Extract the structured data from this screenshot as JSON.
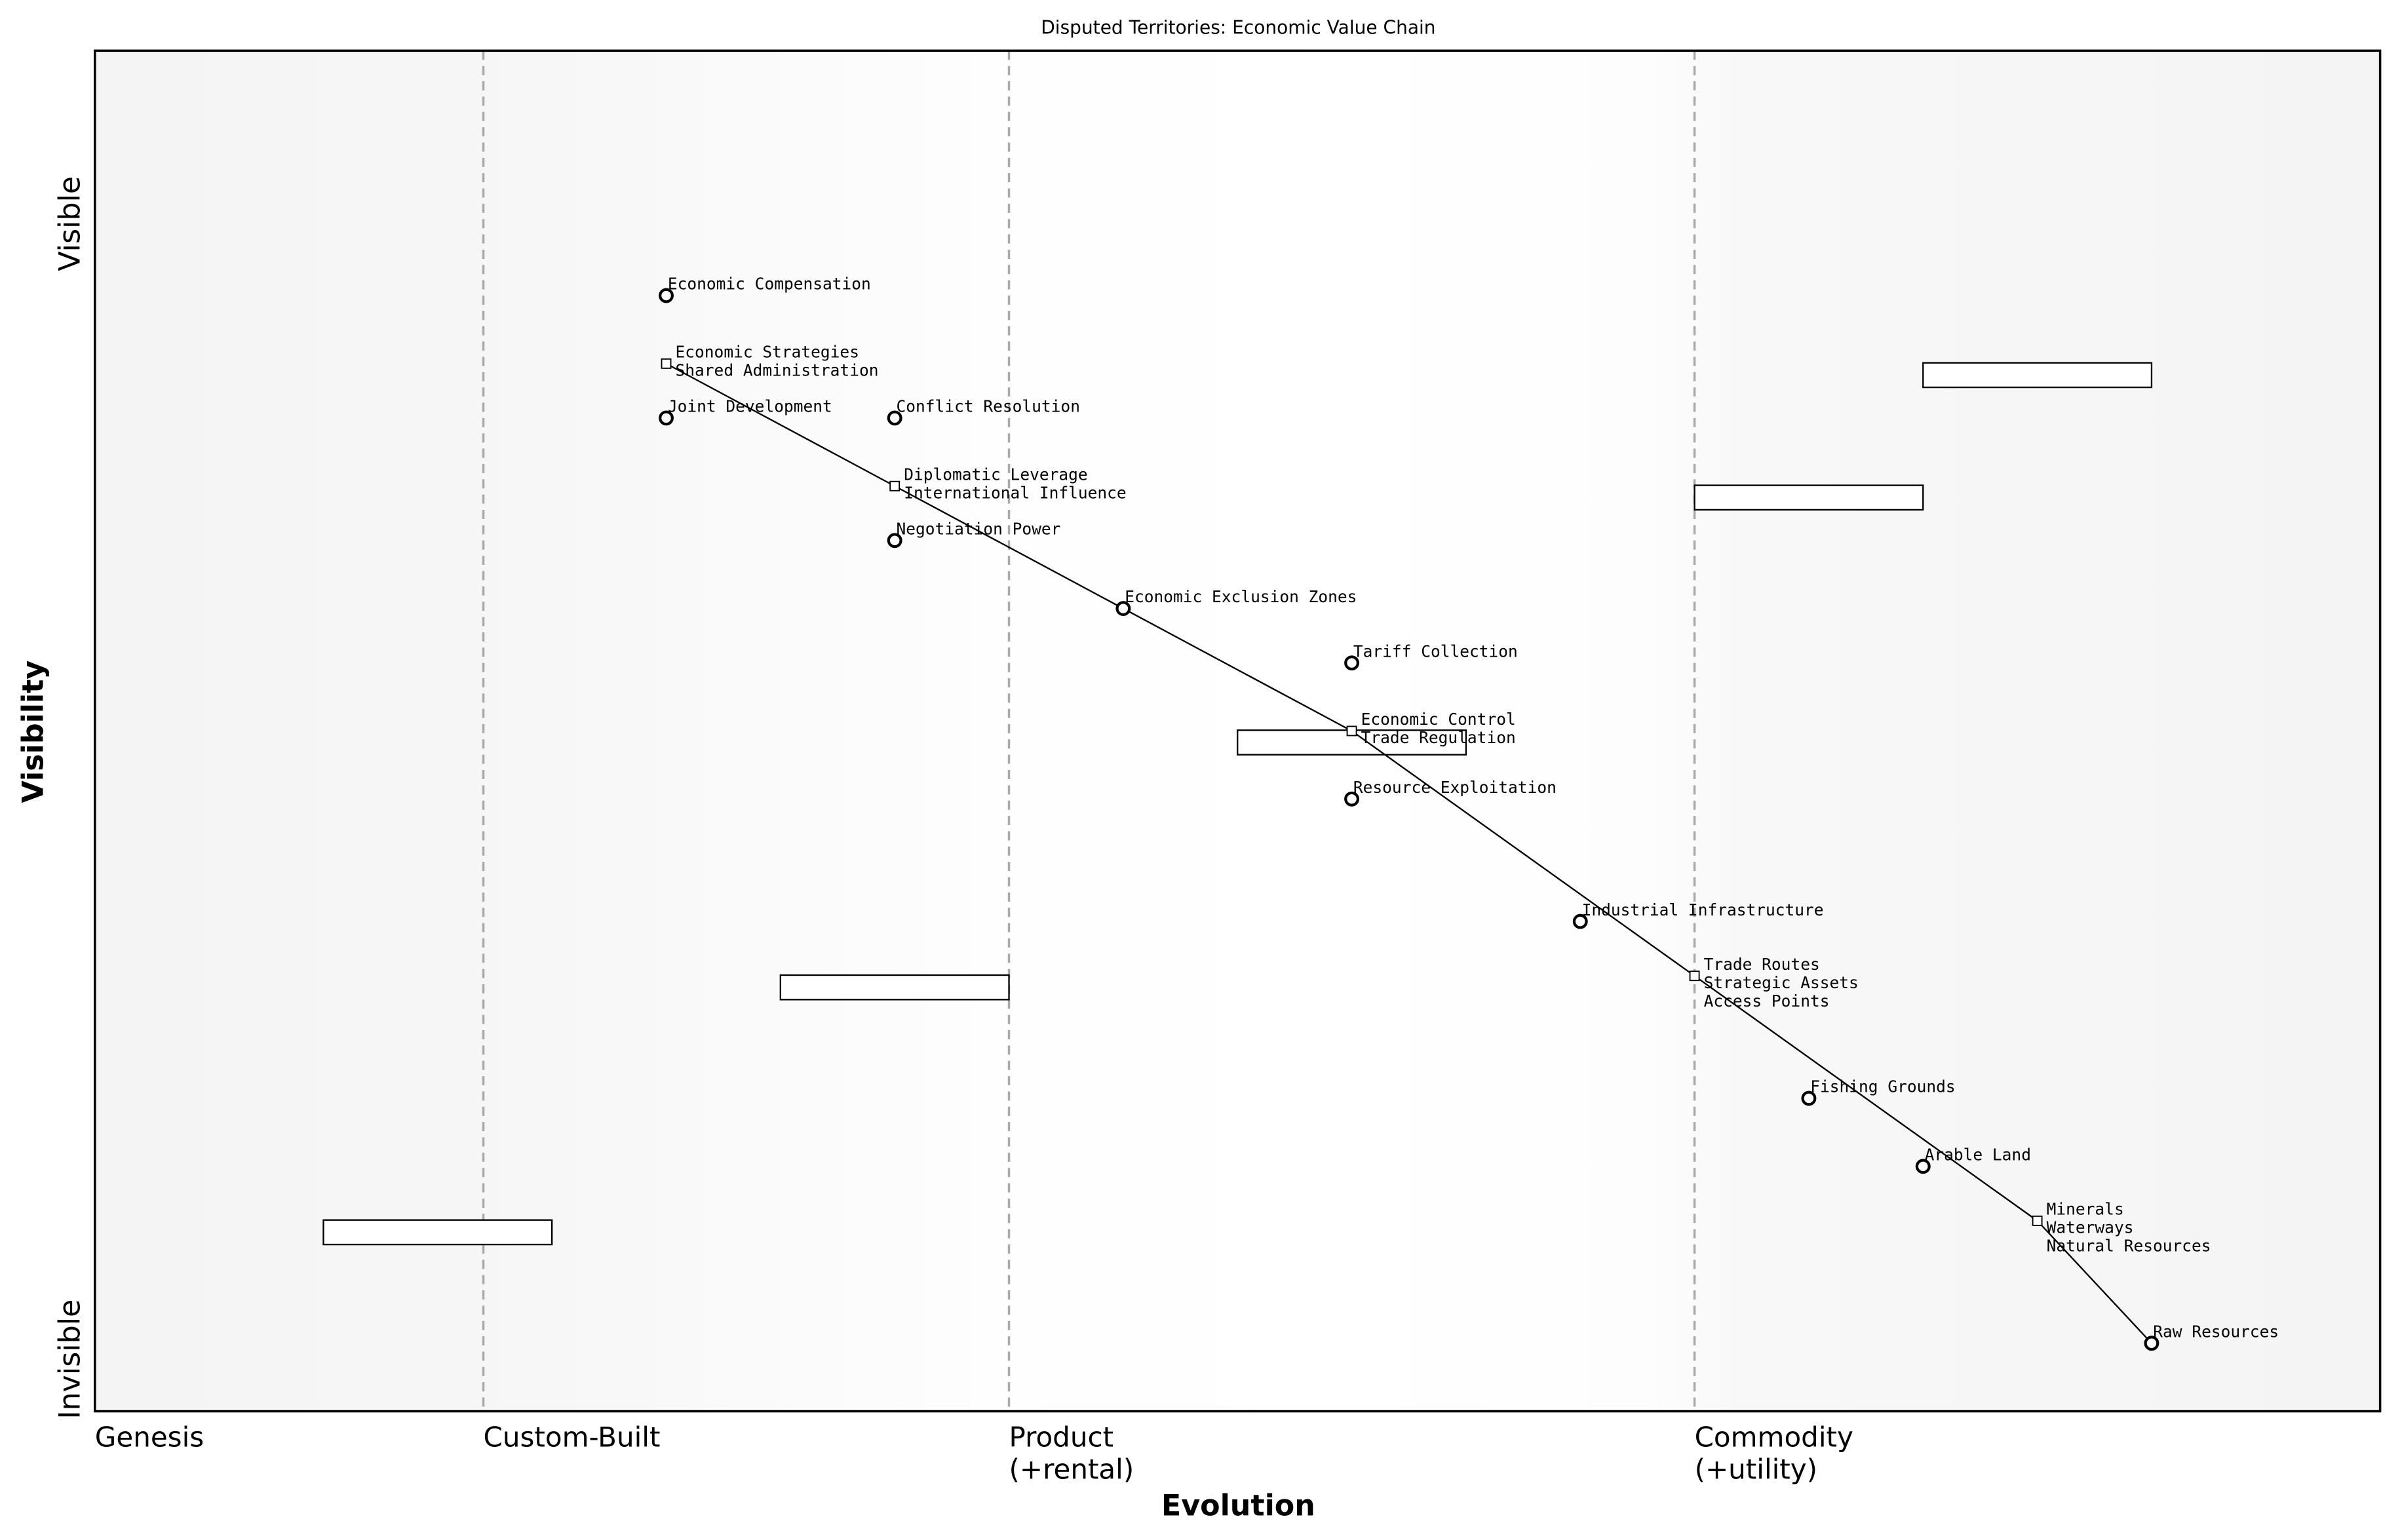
{
  "chart_data": {
    "type": "scatter",
    "title": "Disputed Territories: Economic Value Chain",
    "xlabel": "Evolution",
    "ylabel": "Visibility",
    "xlim": [
      0,
      1
    ],
    "ylim": [
      0,
      1
    ],
    "grid": false,
    "y_tick_labels": {
      "top": "Visible",
      "bottom": "Invisible"
    },
    "stages": [
      {
        "label": "Genesis",
        "start": 0.0
      },
      {
        "label": "Custom-Built",
        "start": 0.17
      },
      {
        "label": "Product\n(+rental)",
        "start": 0.4
      },
      {
        "label": "Commodity\n(+utility)",
        "start": 0.7
      }
    ],
    "components": [
      {
        "name": "Economic Compensation",
        "x": 0.25,
        "y": 0.82
      },
      {
        "name": "Economic Strategies",
        "x": 0.25,
        "y": 0.77
      },
      {
        "name": "Shared Administration",
        "x": 0.25,
        "y": 0.77
      },
      {
        "name": "Joint Development",
        "x": 0.25,
        "y": 0.73
      },
      {
        "name": "Conflict Resolution",
        "x": 0.35,
        "y": 0.73
      },
      {
        "name": "Diplomatic Leverage",
        "x": 0.35,
        "y": 0.68
      },
      {
        "name": "International Influence",
        "x": 0.35,
        "y": 0.68
      },
      {
        "name": "Negotiation Power",
        "x": 0.35,
        "y": 0.64
      },
      {
        "name": "Economic Exclusion Zones",
        "x": 0.45,
        "y": 0.59
      },
      {
        "name": "Tariff Collection",
        "x": 0.55,
        "y": 0.55
      },
      {
        "name": "Economic Control",
        "x": 0.55,
        "y": 0.5
      },
      {
        "name": "Trade Regulation",
        "x": 0.55,
        "y": 0.5
      },
      {
        "name": "Resource Exploitation",
        "x": 0.55,
        "y": 0.45
      },
      {
        "name": "Industrial Infrastructure",
        "x": 0.65,
        "y": 0.36
      },
      {
        "name": "Trade Routes",
        "x": 0.7,
        "y": 0.32
      },
      {
        "name": "Strategic Assets",
        "x": 0.7,
        "y": 0.32
      },
      {
        "name": "Access Points",
        "x": 0.7,
        "y": 0.32
      },
      {
        "name": "Fishing Grounds",
        "x": 0.75,
        "y": 0.23
      },
      {
        "name": "Arable Land",
        "x": 0.8,
        "y": 0.18
      },
      {
        "name": "Minerals",
        "x": 0.85,
        "y": 0.14
      },
      {
        "name": "Waterways",
        "x": 0.85,
        "y": 0.14
      },
      {
        "name": "Natural Resources",
        "x": 0.85,
        "y": 0.14
      },
      {
        "name": "Raw Resources",
        "x": 0.9,
        "y": 0.05
      }
    ],
    "links": [
      [
        [
          0.25,
          0.77
        ],
        [
          0.35,
          0.68
        ]
      ],
      [
        [
          0.35,
          0.68
        ],
        [
          0.45,
          0.59
        ]
      ],
      [
        [
          0.45,
          0.59
        ],
        [
          0.55,
          0.5
        ]
      ],
      [
        [
          0.55,
          0.5
        ],
        [
          0.7,
          0.32
        ]
      ],
      [
        [
          0.7,
          0.32
        ],
        [
          0.85,
          0.14
        ]
      ],
      [
        [
          0.85,
          0.14
        ],
        [
          0.9,
          0.05
        ]
      ]
    ],
    "boxes": [
      {
        "x0": 0.8,
        "x1": 0.9,
        "y": 0.77
      },
      {
        "x0": 0.7,
        "x1": 0.8,
        "y": 0.68
      },
      {
        "x0": 0.5,
        "x1": 0.6,
        "y": 0.5
      },
      {
        "x0": 0.3,
        "x1": 0.4,
        "y": 0.32
      },
      {
        "x0": 0.1,
        "x1": 0.2,
        "y": 0.14
      }
    ],
    "colors": {
      "marker": "#000000",
      "stage_line": "#aaaaaa",
      "background_edge": "#f4f4f4",
      "background_center": "#ffffff"
    }
  }
}
